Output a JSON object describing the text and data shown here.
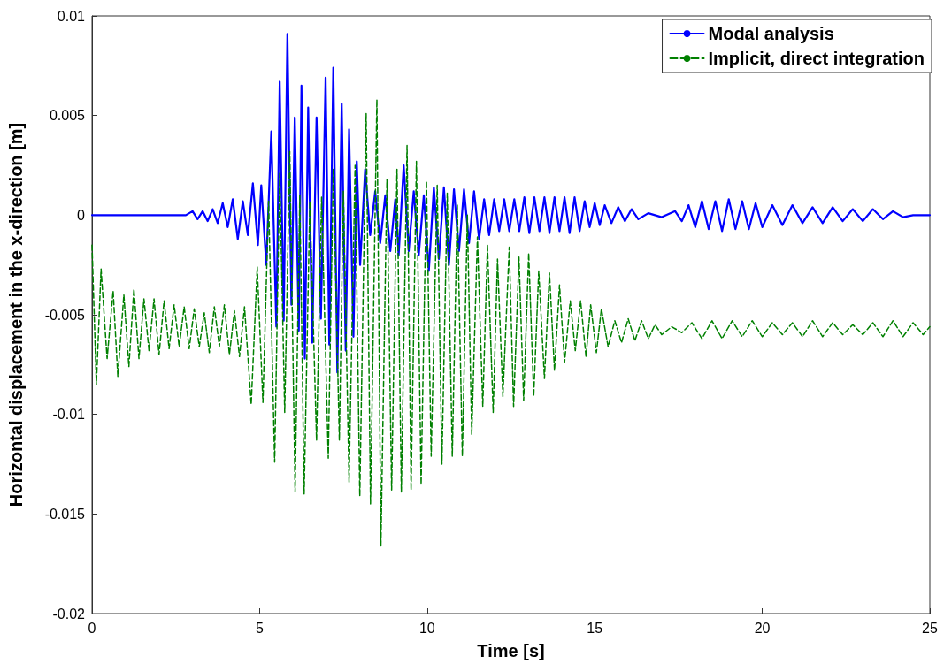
{
  "chart_data": {
    "type": "line",
    "xlabel": "Time [s]",
    "ylabel": "Horizontal displacement in the x-direction [m]",
    "xlim": [
      0,
      25
    ],
    "xticks": [
      0,
      5,
      10,
      15,
      20,
      25
    ],
    "ylim": [
      -0.02,
      0.01
    ],
    "yticks": [
      -0.02,
      -0.015,
      -0.01,
      -0.005,
      0,
      0.005,
      0.01
    ],
    "grid": false,
    "legend": "top right",
    "marker": "none",
    "series": [
      {
        "name": "Modal analysis",
        "color": "#0000ff",
        "line_style": "solid",
        "x": [
          0,
          2.8,
          3.0,
          3.15,
          3.3,
          3.45,
          3.6,
          3.75,
          3.9,
          4.05,
          4.2,
          4.35,
          4.5,
          4.65,
          4.8,
          4.95,
          5.05,
          5.2,
          5.35,
          5.5,
          5.6,
          5.72,
          5.83,
          5.95,
          6.05,
          6.17,
          6.25,
          6.35,
          6.45,
          6.57,
          6.7,
          6.83,
          6.97,
          7.08,
          7.2,
          7.32,
          7.45,
          7.57,
          7.67,
          7.8,
          7.9,
          8.0,
          8.15,
          8.3,
          8.45,
          8.6,
          8.75,
          8.9,
          9.05,
          9.15,
          9.3,
          9.45,
          9.6,
          9.75,
          9.9,
          10.05,
          10.2,
          10.35,
          10.5,
          10.65,
          10.8,
          10.95,
          11.1,
          11.25,
          11.4,
          11.55,
          11.7,
          11.85,
          12.0,
          12.15,
          12.3,
          12.45,
          12.6,
          12.75,
          12.9,
          13.05,
          13.2,
          13.35,
          13.5,
          13.65,
          13.8,
          13.95,
          14.1,
          14.25,
          14.4,
          14.55,
          14.7,
          14.85,
          15.0,
          15.15,
          15.3,
          15.5,
          15.7,
          15.9,
          16.1,
          16.3,
          16.6,
          17.0,
          17.4,
          17.6,
          17.8,
          18.0,
          18.2,
          18.4,
          18.6,
          18.8,
          19.0,
          19.2,
          19.4,
          19.6,
          19.8,
          20.0,
          20.3,
          20.6,
          20.9,
          21.2,
          21.5,
          21.8,
          22.1,
          22.4,
          22.7,
          23.0,
          23.3,
          23.6,
          23.9,
          24.2,
          24.5,
          25
        ],
        "values": [
          0,
          0,
          0.0002,
          -0.0002,
          0.0002,
          -0.0003,
          0.0003,
          -0.0004,
          0.0006,
          -0.0006,
          0.0008,
          -0.0012,
          0.0007,
          -0.001,
          0.0016,
          -0.0015,
          0.0015,
          -0.0025,
          0.0042,
          -0.0056,
          0.0067,
          -0.0053,
          0.0091,
          -0.0045,
          0.0049,
          -0.0058,
          0.0065,
          -0.0072,
          0.0054,
          -0.0064,
          0.0049,
          -0.0052,
          0.0069,
          -0.0065,
          0.0074,
          -0.0079,
          0.0056,
          -0.0068,
          0.0043,
          -0.0061,
          0.0027,
          -0.0025,
          0.0023,
          -0.001,
          0.0012,
          -0.0014,
          0.001,
          -0.0018,
          0.0008,
          -0.002,
          0.0025,
          -0.0018,
          0.0012,
          -0.002,
          0.001,
          -0.0028,
          0.0014,
          -0.0022,
          0.0014,
          -0.0025,
          0.0013,
          -0.0018,
          0.0013,
          -0.0014,
          0.0012,
          -0.0012,
          0.0008,
          -0.001,
          0.0008,
          -0.0008,
          0.0008,
          -0.0008,
          0.0008,
          -0.0008,
          0.0009,
          -0.0009,
          0.0009,
          -0.0008,
          0.0009,
          -0.0009,
          0.0009,
          -0.0008,
          0.0009,
          -0.0009,
          0.0009,
          -0.0008,
          0.0007,
          -0.0006,
          0.0006,
          -0.0005,
          0.0005,
          -0.0004,
          0.0004,
          -0.0003,
          0.0003,
          -0.0002,
          0.0001,
          -0.0001,
          0.0002,
          -0.0003,
          0.0005,
          -0.0006,
          0.0007,
          -0.0007,
          0.0007,
          -0.0008,
          0.0008,
          -0.0007,
          0.0007,
          -0.0007,
          0.0006,
          -0.0006,
          0.0005,
          -0.0005,
          0.0005,
          -0.0004,
          0.0004,
          -0.0004,
          0.0004,
          -0.0003,
          0.0003,
          -0.0003,
          0.0003,
          -0.0002,
          0.0002,
          -0.0001,
          0,
          0
        ]
      },
      {
        "name": "Implicit, direct integration",
        "color": "#008000",
        "line_style": "dashed",
        "x": [
          0,
          0.13,
          0.27,
          0.45,
          0.63,
          0.77,
          0.95,
          1.1,
          1.25,
          1.4,
          1.55,
          1.7,
          1.85,
          2.0,
          2.15,
          2.3,
          2.45,
          2.6,
          2.75,
          2.9,
          3.05,
          3.2,
          3.35,
          3.5,
          3.65,
          3.8,
          3.95,
          4.1,
          4.25,
          4.4,
          4.55,
          4.75,
          4.93,
          5.1,
          5.27,
          5.45,
          5.6,
          5.75,
          5.9,
          6.06,
          6.2,
          6.33,
          6.5,
          6.7,
          6.85,
          7.05,
          7.2,
          7.38,
          7.5,
          7.67,
          7.85,
          7.99,
          8.18,
          8.31,
          8.5,
          8.62,
          8.8,
          8.94,
          9.1,
          9.23,
          9.4,
          9.52,
          9.68,
          9.82,
          9.98,
          10.12,
          10.3,
          10.44,
          10.6,
          10.75,
          10.9,
          11.05,
          11.2,
          11.33,
          11.5,
          11.66,
          11.8,
          11.97,
          12.1,
          12.26,
          12.45,
          12.58,
          12.74,
          12.88,
          13.03,
          13.18,
          13.33,
          13.5,
          13.65,
          13.8,
          13.95,
          14.1,
          14.27,
          14.42,
          14.58,
          14.74,
          14.88,
          15.05,
          15.2,
          15.4,
          15.6,
          15.8,
          16.0,
          16.2,
          16.4,
          16.6,
          16.8,
          17.0,
          17.3,
          17.6,
          17.9,
          18.2,
          18.5,
          18.8,
          19.1,
          19.4,
          19.7,
          20.0,
          20.3,
          20.6,
          20.9,
          21.2,
          21.5,
          21.8,
          22.1,
          22.4,
          22.7,
          23.0,
          23.3,
          23.6,
          23.9,
          24.2,
          24.5,
          24.8,
          25
        ],
        "values": [
          -0.0015,
          -0.0085,
          -0.0027,
          -0.0072,
          -0.0038,
          -0.0081,
          -0.004,
          -0.0076,
          -0.0037,
          -0.0072,
          -0.0042,
          -0.0068,
          -0.0042,
          -0.007,
          -0.0043,
          -0.0067,
          -0.0045,
          -0.0066,
          -0.0046,
          -0.0067,
          -0.0047,
          -0.0066,
          -0.0049,
          -0.0069,
          -0.0046,
          -0.0066,
          -0.0045,
          -0.007,
          -0.0048,
          -0.0071,
          -0.0046,
          -0.0095,
          -0.0026,
          -0.0094,
          0.0007,
          -0.0124,
          0.0021,
          -0.0099,
          0.0032,
          -0.0139,
          0.001,
          -0.014,
          0.0007,
          -0.0113,
          0.0009,
          -0.0122,
          0.0023,
          -0.0113,
          0.0012,
          -0.0134,
          0.0025,
          -0.0141,
          0.0051,
          -0.0145,
          0.0058,
          -0.0166,
          0.0018,
          -0.0138,
          0.0023,
          -0.0139,
          0.0035,
          -0.0138,
          0.0027,
          -0.0135,
          0.0017,
          -0.0121,
          0.0015,
          -0.0125,
          0.0011,
          -0.0121,
          0.0005,
          -0.0121,
          0,
          -0.011,
          -0.0011,
          -0.0096,
          -0.0015,
          -0.0099,
          -0.0022,
          -0.0091,
          -0.0016,
          -0.0096,
          -0.0021,
          -0.0093,
          -0.0019,
          -0.0091,
          -0.0028,
          -0.0082,
          -0.0029,
          -0.0078,
          -0.0035,
          -0.0074,
          -0.0043,
          -0.0068,
          -0.0043,
          -0.0071,
          -0.0045,
          -0.0069,
          -0.0047,
          -0.0066,
          -0.0053,
          -0.0064,
          -0.0052,
          -0.0063,
          -0.0053,
          -0.0062,
          -0.0055,
          -0.006,
          -0.0056,
          -0.0059,
          -0.0054,
          -0.0062,
          -0.0053,
          -0.0062,
          -0.0053,
          -0.0061,
          -0.0053,
          -0.0061,
          -0.0054,
          -0.006,
          -0.0054,
          -0.0061,
          -0.0053,
          -0.0061,
          -0.0054,
          -0.006,
          -0.0055,
          -0.006,
          -0.0054,
          -0.0061,
          -0.0053,
          -0.0061,
          -0.0054,
          -0.006,
          -0.0056
        ]
      }
    ]
  }
}
